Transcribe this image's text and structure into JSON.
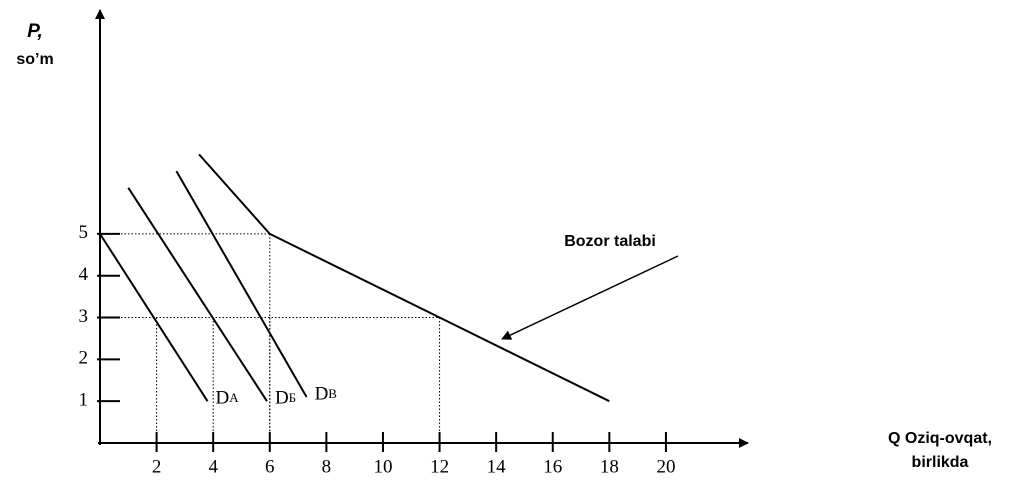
{
  "chart_data": {
    "type": "line",
    "ylabel": [
      "P,",
      "so’m"
    ],
    "xlabel": [
      "Q Oziq-ovqat,",
      "birlikda"
    ],
    "xlim": [
      0,
      22.9
    ],
    "ylim": [
      0,
      10.4
    ],
    "xticks": [
      2,
      4,
      6,
      8,
      10,
      12,
      14,
      16,
      18,
      20
    ],
    "yticks": [
      1,
      2,
      3,
      4,
      5
    ],
    "series": [
      {
        "name": "DA",
        "color": "#000000",
        "x": [
          0,
          3.8
        ],
        "values": [
          5,
          1
        ]
      },
      {
        "name": "DБ",
        "color": "#000000",
        "x": [
          1,
          5.9
        ],
        "values": [
          6.1,
          1
        ]
      },
      {
        "name": "DB",
        "color": "#000000",
        "x": [
          2.7,
          7.3
        ],
        "values": [
          6.5,
          1.1
        ]
      },
      {
        "name": "Bozor talabi",
        "color": "#000000",
        "x": [
          3.5,
          6,
          12,
          18
        ],
        "values": [
          6.9,
          5,
          3,
          1
        ]
      }
    ],
    "reference_points": {
      "x": [
        2,
        4,
        6,
        6,
        12
      ],
      "values": [
        3,
        3,
        3,
        5,
        3
      ]
    }
  }
}
